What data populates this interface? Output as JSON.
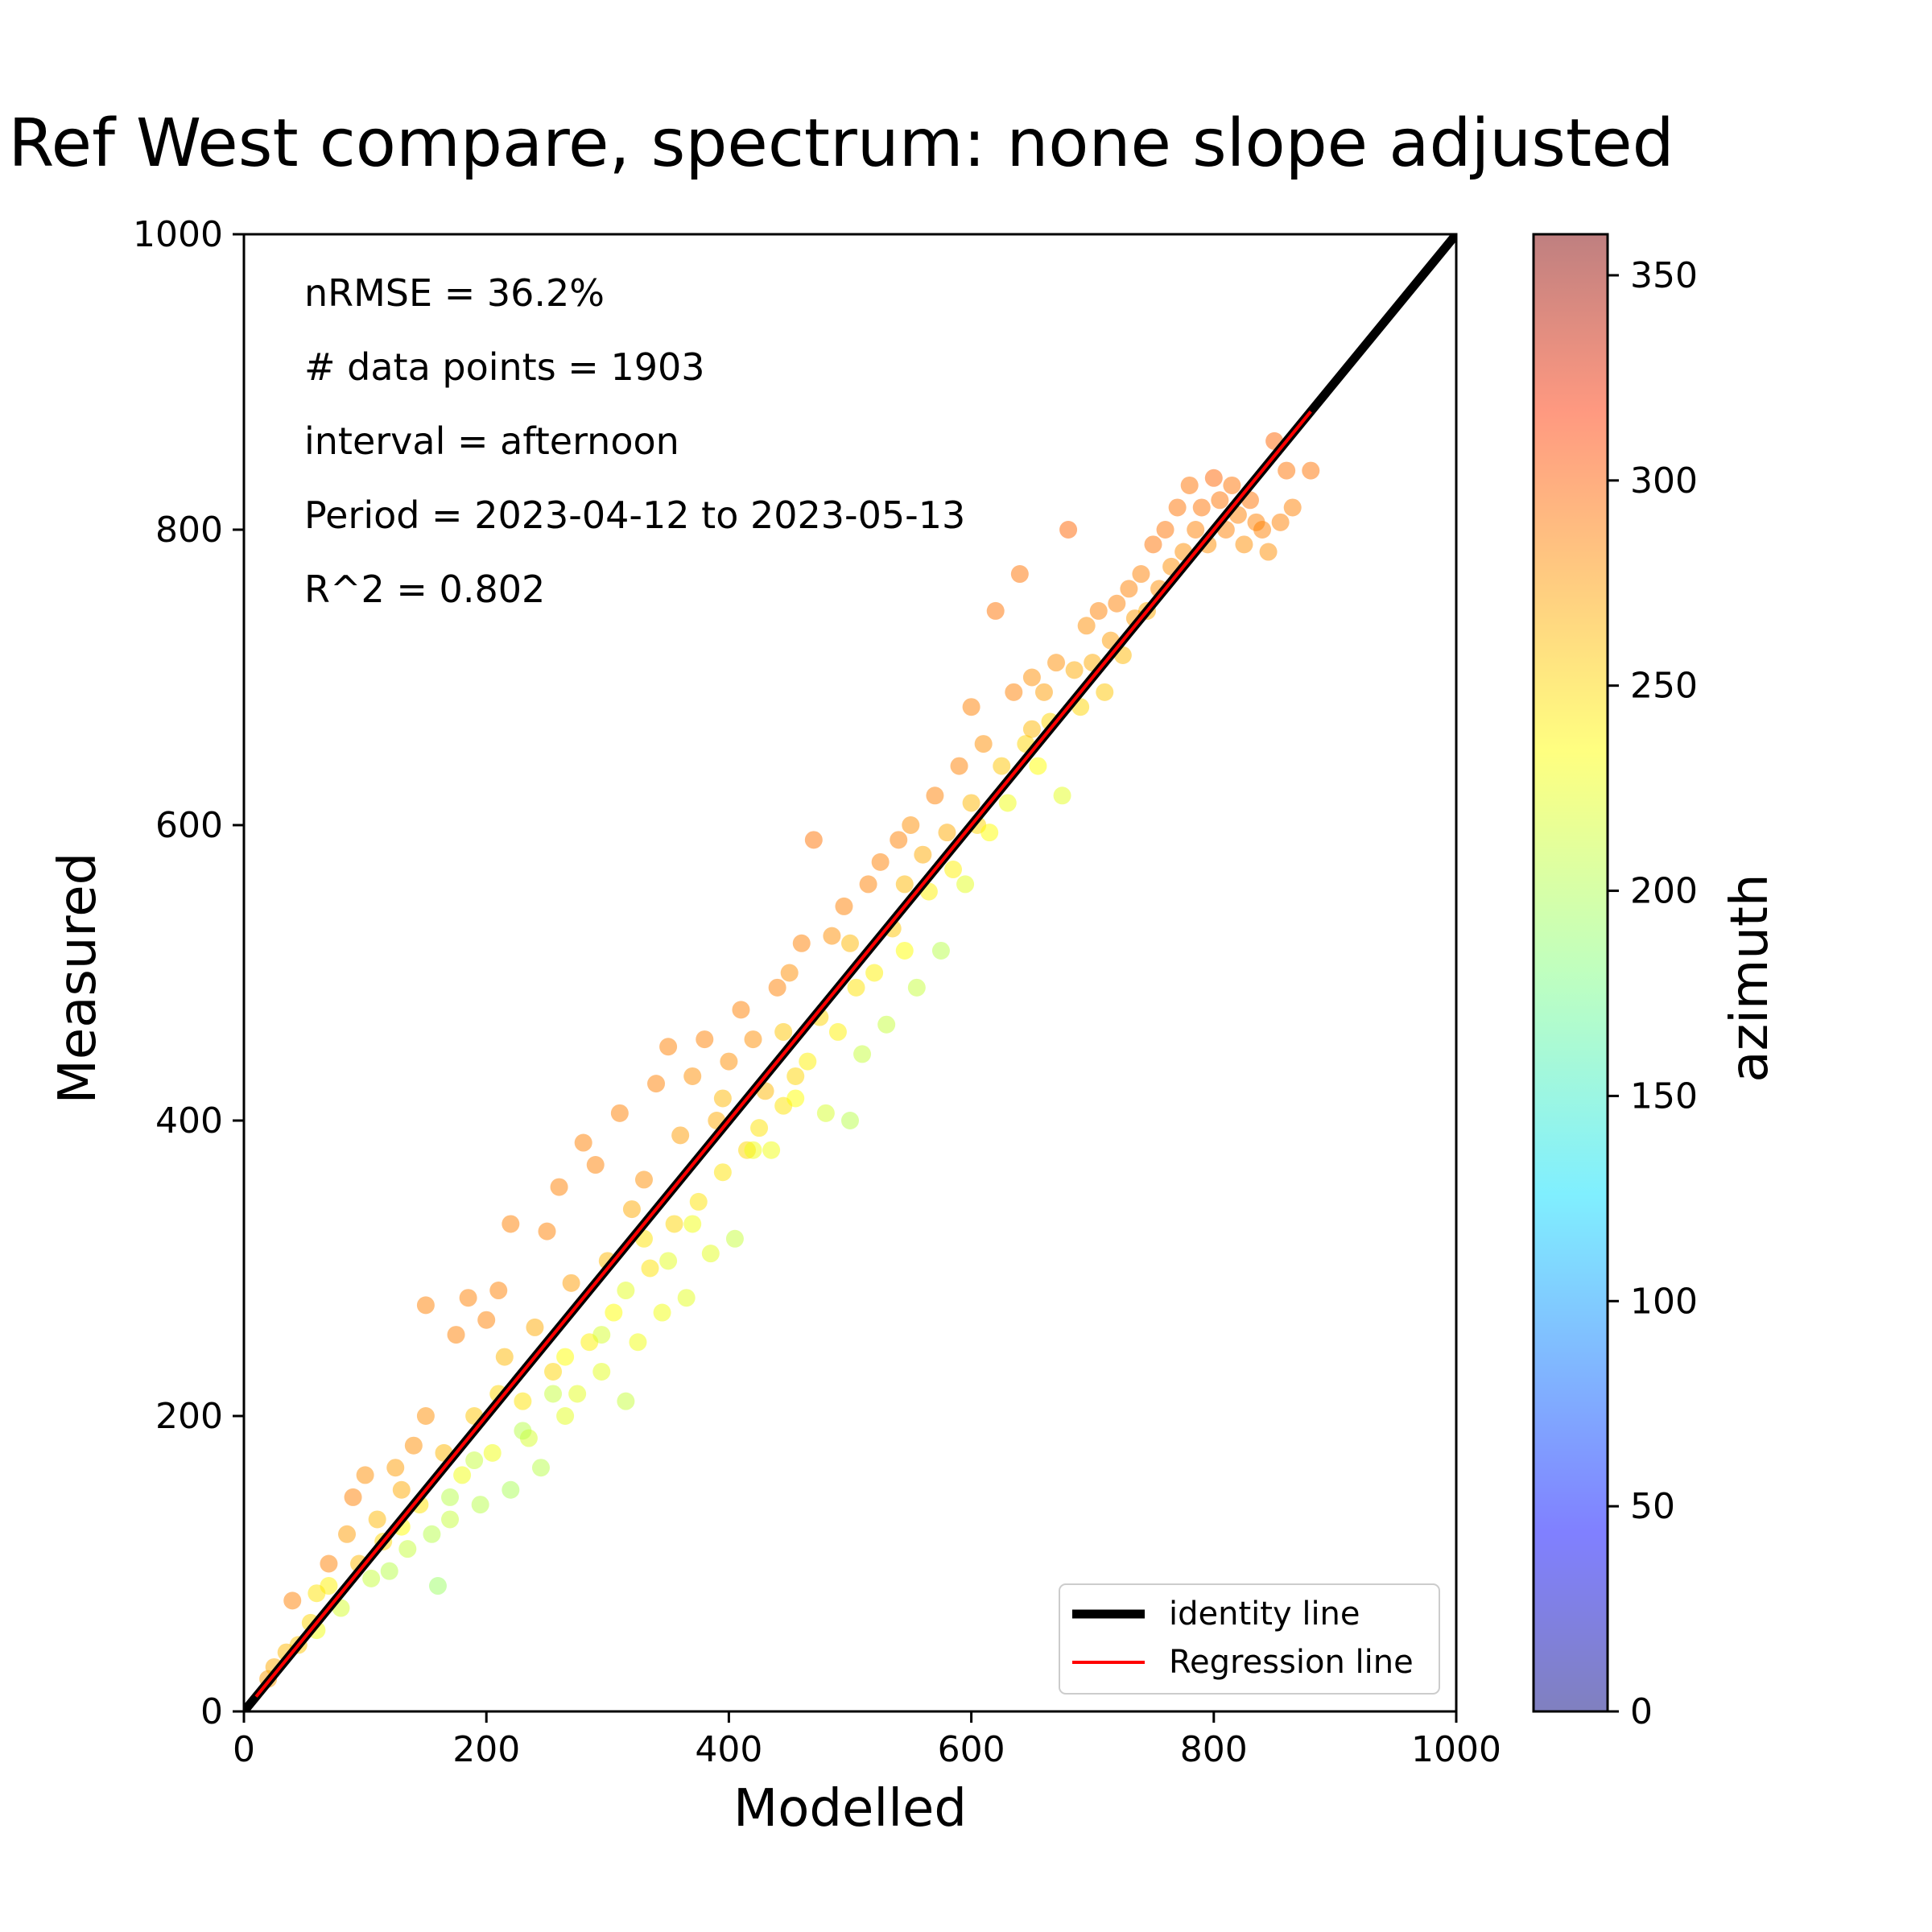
{
  "chart_data": {
    "type": "scatter",
    "title": "Ref West compare, spectrum: none slope adjusted",
    "xlabel": "Modelled",
    "ylabel": "Measured",
    "xlim": [
      0,
      1000
    ],
    "ylim": [
      0,
      1000
    ],
    "x_ticks": [
      "0",
      "200",
      "400",
      "600",
      "800",
      "1000"
    ],
    "y_ticks": [
      "0",
      "200",
      "400",
      "600",
      "800",
      "1000"
    ],
    "grid": false,
    "annotations": [
      "nRMSE = 36.2%",
      "# data points = 1903",
      "interval = afternoon",
      "Period = 2023-04-12 to 2023-05-13",
      "R^2 = 0.802"
    ],
    "legend": {
      "placement": "lower-right",
      "entries": [
        {
          "label": "identity line",
          "color": "#000000"
        },
        {
          "label": "Regression line",
          "color": "#ff0000"
        }
      ]
    },
    "colorbar": {
      "label": "azimuth",
      "range": [
        0,
        360
      ],
      "ticks": [
        "0",
        "50",
        "100",
        "150",
        "200",
        "250",
        "300",
        "350"
      ],
      "colormap": "jet"
    },
    "identity_line": {
      "x": [
        0,
        1000
      ],
      "y": [
        0,
        1000
      ]
    },
    "regression_line": {
      "x": [
        10,
        880
      ],
      "y": [
        10,
        880
      ]
    },
    "points": [
      [
        20,
        22,
        260
      ],
      [
        25,
        30,
        255
      ],
      [
        35,
        40,
        250
      ],
      [
        40,
        75,
        270
      ],
      [
        45,
        45,
        245
      ],
      [
        55,
        60,
        240
      ],
      [
        60,
        55,
        220
      ],
      [
        70,
        85,
        230
      ],
      [
        70,
        100,
        270
      ],
      [
        80,
        70,
        210
      ],
      [
        85,
        120,
        260
      ],
      [
        90,
        145,
        270
      ],
      [
        95,
        100,
        250
      ],
      [
        100,
        160,
        265
      ],
      [
        105,
        90,
        205
      ],
      [
        110,
        130,
        250
      ],
      [
        115,
        115,
        240
      ],
      [
        120,
        95,
        200
      ],
      [
        125,
        165,
        260
      ],
      [
        130,
        150,
        255
      ],
      [
        135,
        110,
        205
      ],
      [
        140,
        180,
        265
      ],
      [
        145,
        140,
        235
      ],
      [
        150,
        275,
        270
      ],
      [
        150,
        200,
        265
      ],
      [
        155,
        120,
        200
      ],
      [
        160,
        85,
        190
      ],
      [
        165,
        175,
        250
      ],
      [
        170,
        130,
        205
      ],
      [
        175,
        255,
        270
      ],
      [
        180,
        160,
        220
      ],
      [
        185,
        280,
        270
      ],
      [
        190,
        200,
        245
      ],
      [
        195,
        140,
        200
      ],
      [
        200,
        265,
        270
      ],
      [
        205,
        175,
        220
      ],
      [
        210,
        285,
        270
      ],
      [
        215,
        240,
        250
      ],
      [
        220,
        330,
        270
      ],
      [
        220,
        150,
        195
      ],
      [
        230,
        210,
        235
      ],
      [
        235,
        185,
        210
      ],
      [
        240,
        260,
        255
      ],
      [
        245,
        165,
        200
      ],
      [
        250,
        325,
        270
      ],
      [
        255,
        230,
        240
      ],
      [
        260,
        355,
        270
      ],
      [
        265,
        200,
        215
      ],
      [
        270,
        290,
        260
      ],
      [
        275,
        215,
        215
      ],
      [
        280,
        385,
        270
      ],
      [
        285,
        250,
        230
      ],
      [
        290,
        370,
        270
      ],
      [
        295,
        230,
        215
      ],
      [
        300,
        305,
        250
      ],
      [
        305,
        270,
        225
      ],
      [
        310,
        405,
        270
      ],
      [
        315,
        210,
        205
      ],
      [
        320,
        340,
        255
      ],
      [
        325,
        250,
        220
      ],
      [
        330,
        360,
        265
      ],
      [
        335,
        300,
        235
      ],
      [
        340,
        425,
        270
      ],
      [
        345,
        270,
        220
      ],
      [
        350,
        450,
        270
      ],
      [
        355,
        330,
        240
      ],
      [
        360,
        390,
        260
      ],
      [
        365,
        280,
        215
      ],
      [
        370,
        430,
        265
      ],
      [
        375,
        345,
        235
      ],
      [
        380,
        455,
        270
      ],
      [
        385,
        310,
        215
      ],
      [
        390,
        400,
        255
      ],
      [
        395,
        365,
        235
      ],
      [
        400,
        440,
        265
      ],
      [
        405,
        320,
        205
      ],
      [
        410,
        475,
        270
      ],
      [
        415,
        380,
        240
      ],
      [
        420,
        455,
        265
      ],
      [
        425,
        395,
        235
      ],
      [
        430,
        420,
        250
      ],
      [
        435,
        380,
        220
      ],
      [
        440,
        490,
        270
      ],
      [
        445,
        410,
        235
      ],
      [
        450,
        500,
        265
      ],
      [
        455,
        430,
        240
      ],
      [
        460,
        520,
        270
      ],
      [
        465,
        440,
        230
      ],
      [
        470,
        590,
        275
      ],
      [
        475,
        470,
        240
      ],
      [
        480,
        405,
        210
      ],
      [
        485,
        525,
        265
      ],
      [
        490,
        460,
        230
      ],
      [
        495,
        545,
        270
      ],
      [
        500,
        400,
        200
      ],
      [
        505,
        490,
        235
      ],
      [
        510,
        445,
        205
      ],
      [
        515,
        560,
        270
      ],
      [
        520,
        500,
        230
      ],
      [
        525,
        575,
        270
      ],
      [
        530,
        465,
        205
      ],
      [
        535,
        530,
        245
      ],
      [
        540,
        590,
        270
      ],
      [
        545,
        515,
        225
      ],
      [
        550,
        600,
        265
      ],
      [
        555,
        490,
        205
      ],
      [
        560,
        580,
        255
      ],
      [
        565,
        555,
        230
      ],
      [
        570,
        620,
        270
      ],
      [
        575,
        515,
        200
      ],
      [
        580,
        595,
        255
      ],
      [
        585,
        570,
        230
      ],
      [
        590,
        640,
        270
      ],
      [
        595,
        560,
        215
      ],
      [
        600,
        680,
        270
      ],
      [
        605,
        600,
        240
      ],
      [
        610,
        655,
        265
      ],
      [
        615,
        595,
        225
      ],
      [
        620,
        745,
        275
      ],
      [
        625,
        640,
        245
      ],
      [
        630,
        615,
        220
      ],
      [
        635,
        690,
        270
      ],
      [
        640,
        770,
        275
      ],
      [
        645,
        655,
        240
      ],
      [
        650,
        700,
        265
      ],
      [
        655,
        640,
        225
      ],
      [
        660,
        690,
        260
      ],
      [
        665,
        670,
        240
      ],
      [
        670,
        710,
        265
      ],
      [
        675,
        620,
        215
      ],
      [
        680,
        800,
        280
      ],
      [
        685,
        705,
        255
      ],
      [
        690,
        680,
        240
      ],
      [
        695,
        735,
        265
      ],
      [
        700,
        710,
        255
      ],
      [
        705,
        745,
        270
      ],
      [
        710,
        690,
        245
      ],
      [
        715,
        725,
        260
      ],
      [
        720,
        750,
        270
      ],
      [
        725,
        715,
        250
      ],
      [
        730,
        760,
        270
      ],
      [
        735,
        740,
        260
      ],
      [
        740,
        770,
        270
      ],
      [
        745,
        745,
        255
      ],
      [
        750,
        790,
        275
      ],
      [
        755,
        760,
        265
      ],
      [
        760,
        800,
        275
      ],
      [
        765,
        775,
        265
      ],
      [
        770,
        815,
        275
      ],
      [
        775,
        785,
        265
      ],
      [
        780,
        830,
        275
      ],
      [
        785,
        800,
        270
      ],
      [
        790,
        815,
        275
      ],
      [
        795,
        790,
        265
      ],
      [
        800,
        835,
        280
      ],
      [
        805,
        820,
        275
      ],
      [
        810,
        800,
        270
      ],
      [
        815,
        830,
        275
      ],
      [
        820,
        810,
        270
      ],
      [
        825,
        790,
        265
      ],
      [
        830,
        820,
        275
      ],
      [
        835,
        805,
        270
      ],
      [
        840,
        800,
        270
      ],
      [
        845,
        785,
        265
      ],
      [
        850,
        860,
        280
      ],
      [
        855,
        805,
        270
      ],
      [
        860,
        840,
        275
      ],
      [
        865,
        815,
        270
      ],
      [
        880,
        840,
        275
      ],
      [
        60,
        80,
        235
      ],
      [
        130,
        125,
        225
      ],
      [
        210,
        215,
        240
      ],
      [
        265,
        240,
        225
      ],
      [
        330,
        320,
        235
      ],
      [
        395,
        415,
        250
      ],
      [
        445,
        460,
        245
      ],
      [
        500,
        520,
        250
      ],
      [
        545,
        560,
        250
      ],
      [
        600,
        615,
        250
      ],
      [
        650,
        665,
        250
      ],
      [
        170,
        145,
        200
      ],
      [
        190,
        170,
        205
      ],
      [
        230,
        190,
        200
      ],
      [
        255,
        215,
        205
      ],
      [
        295,
        255,
        210
      ],
      [
        315,
        285,
        215
      ],
      [
        350,
        305,
        215
      ],
      [
        370,
        330,
        220
      ],
      [
        420,
        380,
        220
      ],
      [
        455,
        415,
        225
      ]
    ]
  }
}
